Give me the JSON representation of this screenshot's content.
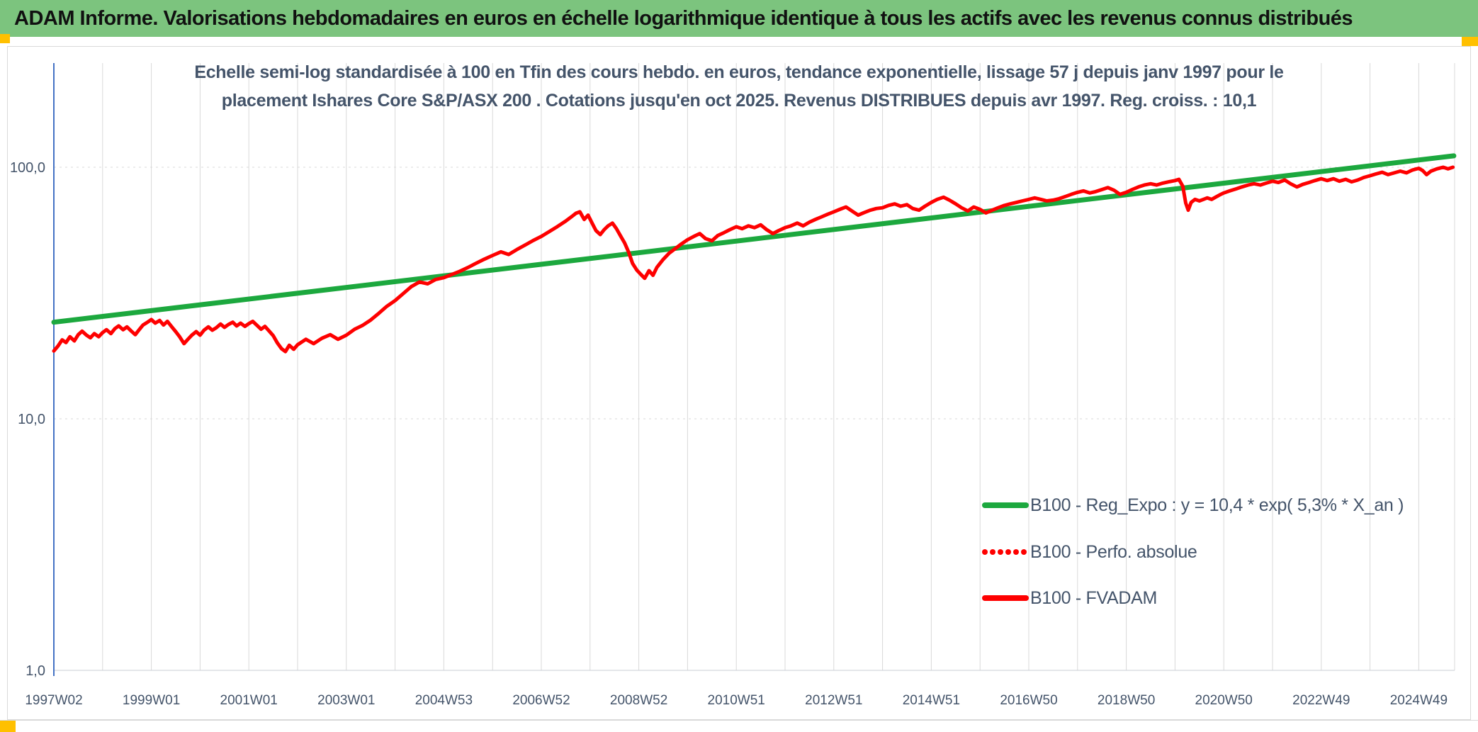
{
  "header": {
    "title": "ADAM Informe. Valorisations hebdomadaires en euros en échelle logarithmique identique à tous les actifs avec les revenus connus distribués",
    "bg_color": "#7CC47E"
  },
  "markers": {
    "color": "#FFC000"
  },
  "chart": {
    "title_line1": "Echelle semi-log standardisée à 100 en Tfin des cours hebdo. en euros, tendance exponentielle, lissage 57 j depuis janv 1997 pour le",
    "title_line2": "placement Ishares Core S&P/ASX 200 . Cotations jusqu'en oct 2025. Revenus DISTRIBUES depuis avr 1997. Reg. croiss. : 10,1",
    "legend": [
      {
        "label": "B100 - Reg_Expo : y = 10,4 * exp( 5,3% *  X_an )",
        "marker": "solid-green",
        "color": "#1CA83E"
      },
      {
        "label": "B100 - Perfo. absolue",
        "marker": "dotted-red",
        "color": "#FE0000"
      },
      {
        "label": "B100 - FVADAM",
        "marker": "solid-red",
        "color": "#FE0000"
      }
    ]
  },
  "chart_data": {
    "type": "line",
    "title": "Echelle semi-log standardisée à 100 en Tfin des cours hebdo. en euros, tendance exponentielle, lissage 57 j depuis janv 1997 pour le placement Ishares Core S&P/ASX 200 . Cotations jusqu'en oct 2025. Revenus DISTRIBUES depuis avr 1997. Reg. croiss. : 10,1",
    "y_scale": "log",
    "ylim": [
      1,
      200
    ],
    "xlim_years": [
      1997.0,
      2025.9
    ],
    "grid": "vertical-yearly, horizontal at powers of 10",
    "legend_position": "inside-right-middle",
    "x_ticks": [
      "1997W02",
      "1999W01",
      "2001W01",
      "2003W01",
      "2004W53",
      "2006W52",
      "2008W52",
      "2010W51",
      "2012W51",
      "2014W51",
      "2016W50",
      "2018W50",
      "2020W50",
      "2022W49",
      "2024W49"
    ],
    "y_ticks": [
      {
        "value": 100,
        "label": "100,0"
      },
      {
        "value": 10,
        "label": "10,0"
      },
      {
        "value": 1,
        "label": "1,0"
      }
    ],
    "series": [
      {
        "name": "B100 - Reg_Expo",
        "equation": "y = 10,4 * exp( 5,3% * X_an )",
        "color": "#1CA83E",
        "width": 7,
        "data_name": "series-regexpo-line",
        "points": [
          [
            1997.0,
            24.2
          ],
          [
            2025.72,
            111.0
          ]
        ]
      },
      {
        "name": "B100 - Perfo. absolue",
        "color": "#FE0000",
        "style": "dotted",
        "note": "coincides with B100 - FVADAM (revenues distributed), hidden beneath solid red curve",
        "data_name": "series-perfo-absolue"
      },
      {
        "name": "B100 - FVADAM",
        "color": "#FE0000",
        "width": 5,
        "data_name": "series-fvadam-line",
        "points": [
          [
            1997.0,
            18.6
          ],
          [
            1997.08,
            19.4
          ],
          [
            1997.17,
            20.6
          ],
          [
            1997.25,
            20.1
          ],
          [
            1997.33,
            21.2
          ],
          [
            1997.42,
            20.4
          ],
          [
            1997.5,
            21.6
          ],
          [
            1997.58,
            22.3
          ],
          [
            1997.67,
            21.5
          ],
          [
            1997.75,
            21.0
          ],
          [
            1997.83,
            21.8
          ],
          [
            1997.92,
            21.2
          ],
          [
            1998.0,
            22.0
          ],
          [
            1998.08,
            22.6
          ],
          [
            1998.17,
            21.8
          ],
          [
            1998.25,
            22.8
          ],
          [
            1998.33,
            23.4
          ],
          [
            1998.42,
            22.6
          ],
          [
            1998.5,
            23.2
          ],
          [
            1998.58,
            22.4
          ],
          [
            1998.67,
            21.6
          ],
          [
            1998.75,
            22.6
          ],
          [
            1998.83,
            23.6
          ],
          [
            1998.92,
            24.2
          ],
          [
            1999.0,
            24.8
          ],
          [
            1999.08,
            24.0
          ],
          [
            1999.17,
            24.6
          ],
          [
            1999.25,
            23.6
          ],
          [
            1999.33,
            24.4
          ],
          [
            1999.42,
            23.2
          ],
          [
            1999.5,
            22.2
          ],
          [
            1999.58,
            21.2
          ],
          [
            1999.67,
            19.9
          ],
          [
            1999.75,
            20.7
          ],
          [
            1999.83,
            21.5
          ],
          [
            1999.92,
            22.2
          ],
          [
            2000.0,
            21.5
          ],
          [
            2000.08,
            22.5
          ],
          [
            2000.17,
            23.2
          ],
          [
            2000.25,
            22.5
          ],
          [
            2000.33,
            23.0
          ],
          [
            2000.42,
            23.8
          ],
          [
            2000.5,
            23.1
          ],
          [
            2000.58,
            23.7
          ],
          [
            2000.67,
            24.2
          ],
          [
            2000.75,
            23.4
          ],
          [
            2000.83,
            24.0
          ],
          [
            2000.92,
            23.3
          ],
          [
            2001.0,
            23.9
          ],
          [
            2001.08,
            24.4
          ],
          [
            2001.17,
            23.5
          ],
          [
            2001.25,
            22.7
          ],
          [
            2001.33,
            23.3
          ],
          [
            2001.42,
            22.3
          ],
          [
            2001.5,
            21.4
          ],
          [
            2001.58,
            20.1
          ],
          [
            2001.67,
            19.0
          ],
          [
            2001.75,
            18.5
          ],
          [
            2001.83,
            19.6
          ],
          [
            2001.92,
            18.9
          ],
          [
            2002.0,
            19.7
          ],
          [
            2002.17,
            20.7
          ],
          [
            2002.33,
            19.9
          ],
          [
            2002.5,
            20.9
          ],
          [
            2002.67,
            21.6
          ],
          [
            2002.83,
            20.7
          ],
          [
            2003.0,
            21.5
          ],
          [
            2003.17,
            22.7
          ],
          [
            2003.33,
            23.5
          ],
          [
            2003.5,
            24.7
          ],
          [
            2003.67,
            26.3
          ],
          [
            2003.83,
            28.0
          ],
          [
            2004.0,
            29.5
          ],
          [
            2004.17,
            31.5
          ],
          [
            2004.33,
            33.5
          ],
          [
            2004.5,
            35.0
          ],
          [
            2004.67,
            34.4
          ],
          [
            2004.83,
            35.8
          ],
          [
            2005.0,
            36.4
          ],
          [
            2005.17,
            37.5
          ],
          [
            2005.33,
            38.6
          ],
          [
            2005.5,
            40.0
          ],
          [
            2005.67,
            41.6
          ],
          [
            2005.83,
            43.1
          ],
          [
            2006.0,
            44.6
          ],
          [
            2006.17,
            46.1
          ],
          [
            2006.33,
            45.0
          ],
          [
            2006.5,
            47.1
          ],
          [
            2006.67,
            49.1
          ],
          [
            2006.83,
            51.1
          ],
          [
            2007.0,
            53.1
          ],
          [
            2007.17,
            55.6
          ],
          [
            2007.33,
            58.1
          ],
          [
            2007.5,
            61.1
          ],
          [
            2007.62,
            63.6
          ],
          [
            2007.71,
            65.6
          ],
          [
            2007.79,
            66.5
          ],
          [
            2007.88,
            62.0
          ],
          [
            2007.96,
            64.5
          ],
          [
            2008.04,
            60.0
          ],
          [
            2008.12,
            56.0
          ],
          [
            2008.21,
            54.0
          ],
          [
            2008.29,
            56.5
          ],
          [
            2008.37,
            58.5
          ],
          [
            2008.46,
            60.0
          ],
          [
            2008.54,
            57.0
          ],
          [
            2008.62,
            53.5
          ],
          [
            2008.71,
            50.0
          ],
          [
            2008.79,
            46.0
          ],
          [
            2008.87,
            41.5
          ],
          [
            2008.96,
            39.0
          ],
          [
            2009.04,
            37.5
          ],
          [
            2009.12,
            36.2
          ],
          [
            2009.21,
            38.8
          ],
          [
            2009.29,
            37.2
          ],
          [
            2009.37,
            40.0
          ],
          [
            2009.5,
            43.0
          ],
          [
            2009.62,
            45.5
          ],
          [
            2009.75,
            47.5
          ],
          [
            2009.87,
            49.5
          ],
          [
            2010.0,
            51.5
          ],
          [
            2010.12,
            53.0
          ],
          [
            2010.25,
            54.5
          ],
          [
            2010.37,
            52.0
          ],
          [
            2010.5,
            51.0
          ],
          [
            2010.62,
            53.5
          ],
          [
            2010.75,
            55.0
          ],
          [
            2010.87,
            56.5
          ],
          [
            2011.0,
            58.0
          ],
          [
            2011.12,
            57.0
          ],
          [
            2011.25,
            58.5
          ],
          [
            2011.37,
            57.5
          ],
          [
            2011.5,
            59.0
          ],
          [
            2011.62,
            56.5
          ],
          [
            2011.75,
            54.5
          ],
          [
            2011.87,
            56.0
          ],
          [
            2012.0,
            57.5
          ],
          [
            2012.12,
            58.5
          ],
          [
            2012.25,
            60.0
          ],
          [
            2012.37,
            58.5
          ],
          [
            2012.5,
            60.5
          ],
          [
            2012.62,
            62.0
          ],
          [
            2012.75,
            63.5
          ],
          [
            2012.87,
            65.0
          ],
          [
            2013.0,
            66.5
          ],
          [
            2013.12,
            68.0
          ],
          [
            2013.25,
            69.5
          ],
          [
            2013.37,
            67.0
          ],
          [
            2013.5,
            64.5
          ],
          [
            2013.62,
            66.0
          ],
          [
            2013.75,
            67.5
          ],
          [
            2013.87,
            68.5
          ],
          [
            2014.0,
            69.0
          ],
          [
            2014.12,
            70.5
          ],
          [
            2014.25,
            71.5
          ],
          [
            2014.37,
            70.0
          ],
          [
            2014.5,
            71.0
          ],
          [
            2014.62,
            68.5
          ],
          [
            2014.75,
            67.5
          ],
          [
            2014.87,
            70.0
          ],
          [
            2015.0,
            72.5
          ],
          [
            2015.12,
            74.5
          ],
          [
            2015.25,
            76.0
          ],
          [
            2015.37,
            74.0
          ],
          [
            2015.5,
            71.5
          ],
          [
            2015.62,
            69.0
          ],
          [
            2015.75,
            67.0
          ],
          [
            2015.87,
            69.5
          ],
          [
            2016.0,
            68.0
          ],
          [
            2016.12,
            65.8
          ],
          [
            2016.25,
            67.5
          ],
          [
            2016.37,
            69.0
          ],
          [
            2016.5,
            70.5
          ],
          [
            2016.62,
            71.5
          ],
          [
            2016.75,
            72.5
          ],
          [
            2016.87,
            73.5
          ],
          [
            2017.0,
            74.5
          ],
          [
            2017.12,
            75.5
          ],
          [
            2017.25,
            74.5
          ],
          [
            2017.37,
            73.5
          ],
          [
            2017.5,
            74.0
          ],
          [
            2017.62,
            75.0
          ],
          [
            2017.75,
            76.5
          ],
          [
            2017.87,
            78.0
          ],
          [
            2018.0,
            79.5
          ],
          [
            2018.12,
            80.5
          ],
          [
            2018.25,
            79.0
          ],
          [
            2018.37,
            80.0
          ],
          [
            2018.5,
            81.5
          ],
          [
            2018.62,
            83.0
          ],
          [
            2018.75,
            81.0
          ],
          [
            2018.87,
            78.0
          ],
          [
            2019.0,
            79.5
          ],
          [
            2019.12,
            81.5
          ],
          [
            2019.25,
            83.5
          ],
          [
            2019.37,
            85.0
          ],
          [
            2019.5,
            86.0
          ],
          [
            2019.62,
            85.0
          ],
          [
            2019.75,
            86.5
          ],
          [
            2019.87,
            87.5
          ],
          [
            2020.0,
            88.5
          ],
          [
            2020.08,
            89.5
          ],
          [
            2020.16,
            84.0
          ],
          [
            2020.22,
            72.0
          ],
          [
            2020.27,
            67.5
          ],
          [
            2020.33,
            72.5
          ],
          [
            2020.41,
            74.5
          ],
          [
            2020.5,
            73.5
          ],
          [
            2020.58,
            74.5
          ],
          [
            2020.66,
            75.5
          ],
          [
            2020.75,
            74.5
          ],
          [
            2020.83,
            76.0
          ],
          [
            2020.91,
            77.5
          ],
          [
            2021.0,
            79.0
          ],
          [
            2021.12,
            80.5
          ],
          [
            2021.25,
            82.0
          ],
          [
            2021.37,
            83.5
          ],
          [
            2021.5,
            85.0
          ],
          [
            2021.62,
            86.0
          ],
          [
            2021.75,
            85.0
          ],
          [
            2021.87,
            86.5
          ],
          [
            2022.0,
            88.0
          ],
          [
            2022.12,
            87.0
          ],
          [
            2022.25,
            89.0
          ],
          [
            2022.37,
            86.0
          ],
          [
            2022.5,
            83.5
          ],
          [
            2022.62,
            85.5
          ],
          [
            2022.75,
            87.0
          ],
          [
            2022.87,
            88.5
          ],
          [
            2023.0,
            90.0
          ],
          [
            2023.12,
            88.5
          ],
          [
            2023.25,
            90.0
          ],
          [
            2023.37,
            88.0
          ],
          [
            2023.5,
            89.5
          ],
          [
            2023.62,
            87.5
          ],
          [
            2023.75,
            89.0
          ],
          [
            2023.87,
            91.0
          ],
          [
            2024.0,
            92.5
          ],
          [
            2024.12,
            94.0
          ],
          [
            2024.25,
            95.5
          ],
          [
            2024.37,
            93.5
          ],
          [
            2024.5,
            95.0
          ],
          [
            2024.62,
            96.5
          ],
          [
            2024.75,
            95.0
          ],
          [
            2024.87,
            97.5
          ],
          [
            2025.0,
            99.0
          ],
          [
            2025.08,
            97.0
          ],
          [
            2025.16,
            93.5
          ],
          [
            2025.25,
            96.5
          ],
          [
            2025.37,
            98.5
          ],
          [
            2025.5,
            100.0
          ],
          [
            2025.6,
            98.5
          ],
          [
            2025.7,
            100.0
          ]
        ]
      }
    ]
  }
}
